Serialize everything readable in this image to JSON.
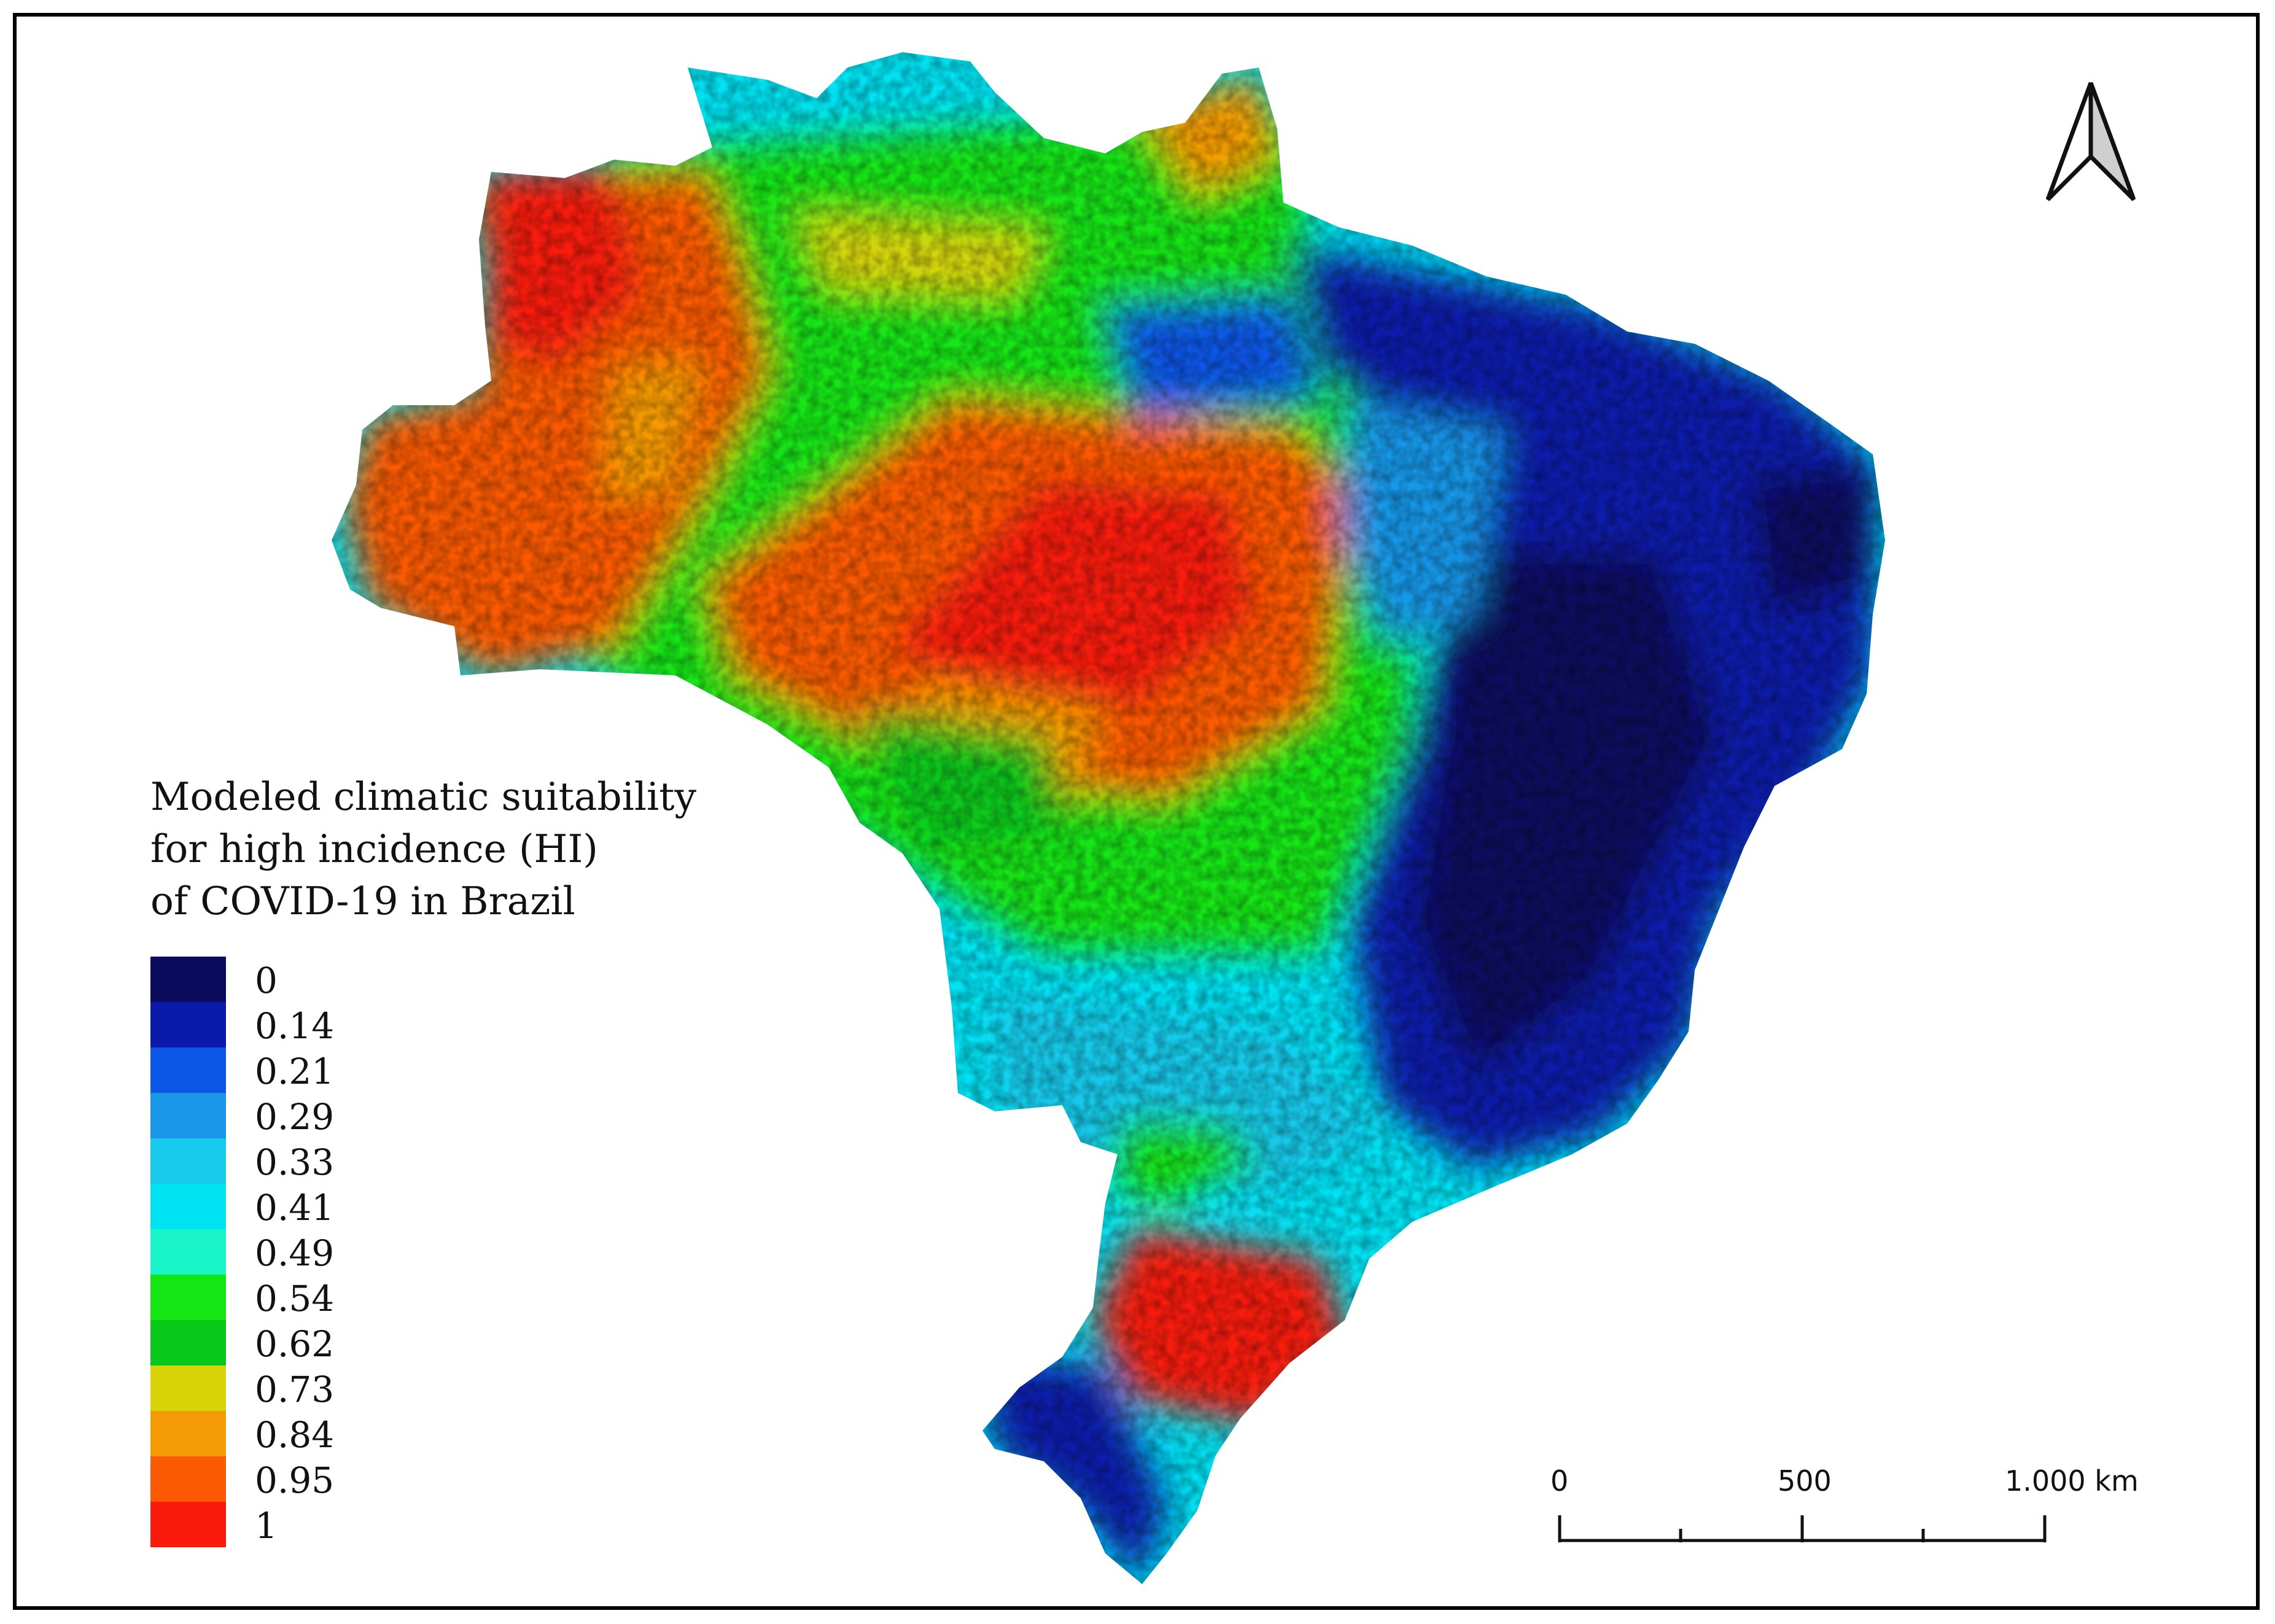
{
  "legend": {
    "title_lines": [
      "Modeled climatic suitability",
      "for high incidence (HI)",
      "of COVID-19 in Brazil"
    ],
    "classes": [
      {
        "label": "0",
        "color": "#0b0b5e"
      },
      {
        "label": "0.14",
        "color": "#0a1aab"
      },
      {
        "label": "0.21",
        "color": "#0b56e6"
      },
      {
        "label": "0.29",
        "color": "#1897e8"
      },
      {
        "label": "0.33",
        "color": "#17c9ea"
      },
      {
        "label": "0.41",
        "color": "#00e3f3"
      },
      {
        "label": "0.49",
        "color": "#19f5c8"
      },
      {
        "label": "0.54",
        "color": "#14e614"
      },
      {
        "label": "0.62",
        "color": "#08c81a"
      },
      {
        "label": "0.73",
        "color": "#d9d408"
      },
      {
        "label": "0.84",
        "color": "#f59b06"
      },
      {
        "label": "0.95",
        "color": "#fb5a03"
      },
      {
        "label": "1",
        "color": "#f91a0b"
      }
    ]
  },
  "scale_bar": {
    "labels": [
      "0",
      "500",
      "1.000 km"
    ]
  },
  "north_arrow": {
    "icon": "north-arrow-icon"
  }
}
